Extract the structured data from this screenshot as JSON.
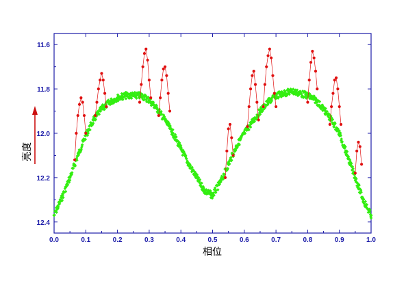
{
  "chart_data": {
    "type": "scatter",
    "xlabel": "相位",
    "ylabel": "亮度",
    "xlim": [
      0.0,
      1.0
    ],
    "ylim": [
      12.45,
      11.55
    ],
    "y_axis_inverted": true,
    "grid": false,
    "legend": "none",
    "x_ticks": [
      "0.0",
      "0.1",
      "0.2",
      "0.3",
      "0.4",
      "0.5",
      "0.6",
      "0.7",
      "0.8",
      "0.9",
      "1.0"
    ],
    "y_ticks": [
      "11.6",
      "11.8",
      "12.0",
      "12.2",
      "12.4"
    ],
    "x_tick_values": [
      0.0,
      0.1,
      0.2,
      0.3,
      0.4,
      0.5,
      0.6,
      0.7,
      0.8,
      0.9,
      1.0
    ],
    "y_tick_values": [
      11.6,
      11.8,
      12.0,
      12.2,
      12.4
    ],
    "colors": {
      "axis": "#1a1aa8",
      "quiescent": "#33ee11",
      "flare": "#e01010",
      "arrow": "#cc1111"
    },
    "series": [
      {
        "color": "#33ee11",
        "marker": "diamond",
        "x": [
          0.0,
          0.025,
          0.05,
          0.075,
          0.1,
          0.125,
          0.15,
          0.175,
          0.2,
          0.225,
          0.25,
          0.275,
          0.3,
          0.325,
          0.35,
          0.375,
          0.4,
          0.425,
          0.45,
          0.475,
          0.5,
          0.525,
          0.55,
          0.575,
          0.6,
          0.625,
          0.65,
          0.675,
          0.7,
          0.725,
          0.75,
          0.775,
          0.8,
          0.825,
          0.85,
          0.875,
          0.9,
          0.925,
          0.95,
          0.975,
          1.0
        ],
        "y": [
          12.37,
          12.29,
          12.2,
          12.1,
          12.01,
          11.94,
          11.89,
          11.86,
          11.84,
          11.83,
          11.83,
          11.83,
          11.85,
          11.89,
          11.94,
          12.0,
          12.07,
          12.14,
          12.2,
          12.26,
          12.28,
          12.22,
          12.14,
          12.06,
          12.0,
          11.95,
          11.9,
          11.86,
          11.83,
          11.82,
          11.81,
          11.82,
          11.83,
          11.85,
          11.89,
          11.94,
          12.0,
          12.1,
          12.2,
          12.3,
          12.37
        ]
      },
      {
        "color": "#e01010",
        "marker": "circle",
        "x": [
          0.065,
          0.07,
          0.075,
          0.08,
          0.085,
          0.09,
          0.095,
          0.1,
          0.13,
          0.135,
          0.14,
          0.145,
          0.15,
          0.155,
          0.16,
          0.165,
          0.27,
          0.275,
          0.28,
          0.285,
          0.29,
          0.295,
          0.3,
          0.305,
          0.33,
          0.335,
          0.34,
          0.345,
          0.35,
          0.355,
          0.36,
          0.365,
          0.54,
          0.545,
          0.55,
          0.555,
          0.56,
          0.565,
          0.61,
          0.615,
          0.62,
          0.625,
          0.63,
          0.635,
          0.64,
          0.645,
          0.66,
          0.665,
          0.67,
          0.675,
          0.68,
          0.685,
          0.69,
          0.695,
          0.7,
          0.8,
          0.805,
          0.81,
          0.815,
          0.82,
          0.825,
          0.83,
          0.87,
          0.875,
          0.88,
          0.885,
          0.89,
          0.895,
          0.9,
          0.905,
          0.95,
          0.955,
          0.96,
          0.965,
          0.97
        ],
        "y": [
          12.12,
          12.0,
          11.92,
          11.87,
          11.84,
          11.86,
          11.92,
          12.0,
          11.92,
          11.86,
          11.8,
          11.76,
          11.73,
          11.76,
          11.82,
          11.88,
          11.86,
          11.78,
          11.7,
          11.64,
          11.62,
          11.67,
          11.76,
          11.84,
          11.92,
          11.84,
          11.76,
          11.71,
          11.7,
          11.74,
          11.82,
          11.9,
          12.2,
          12.08,
          11.98,
          11.96,
          12.02,
          12.1,
          11.97,
          11.88,
          11.8,
          11.74,
          11.72,
          11.78,
          11.86,
          11.94,
          11.88,
          11.78,
          11.7,
          11.65,
          11.62,
          11.66,
          11.74,
          11.82,
          11.88,
          11.86,
          11.76,
          11.68,
          11.63,
          11.66,
          11.72,
          11.8,
          11.96,
          11.88,
          11.82,
          11.76,
          11.75,
          11.8,
          11.88,
          11.96,
          12.18,
          12.08,
          12.04,
          12.06,
          12.14
        ]
      }
    ]
  }
}
